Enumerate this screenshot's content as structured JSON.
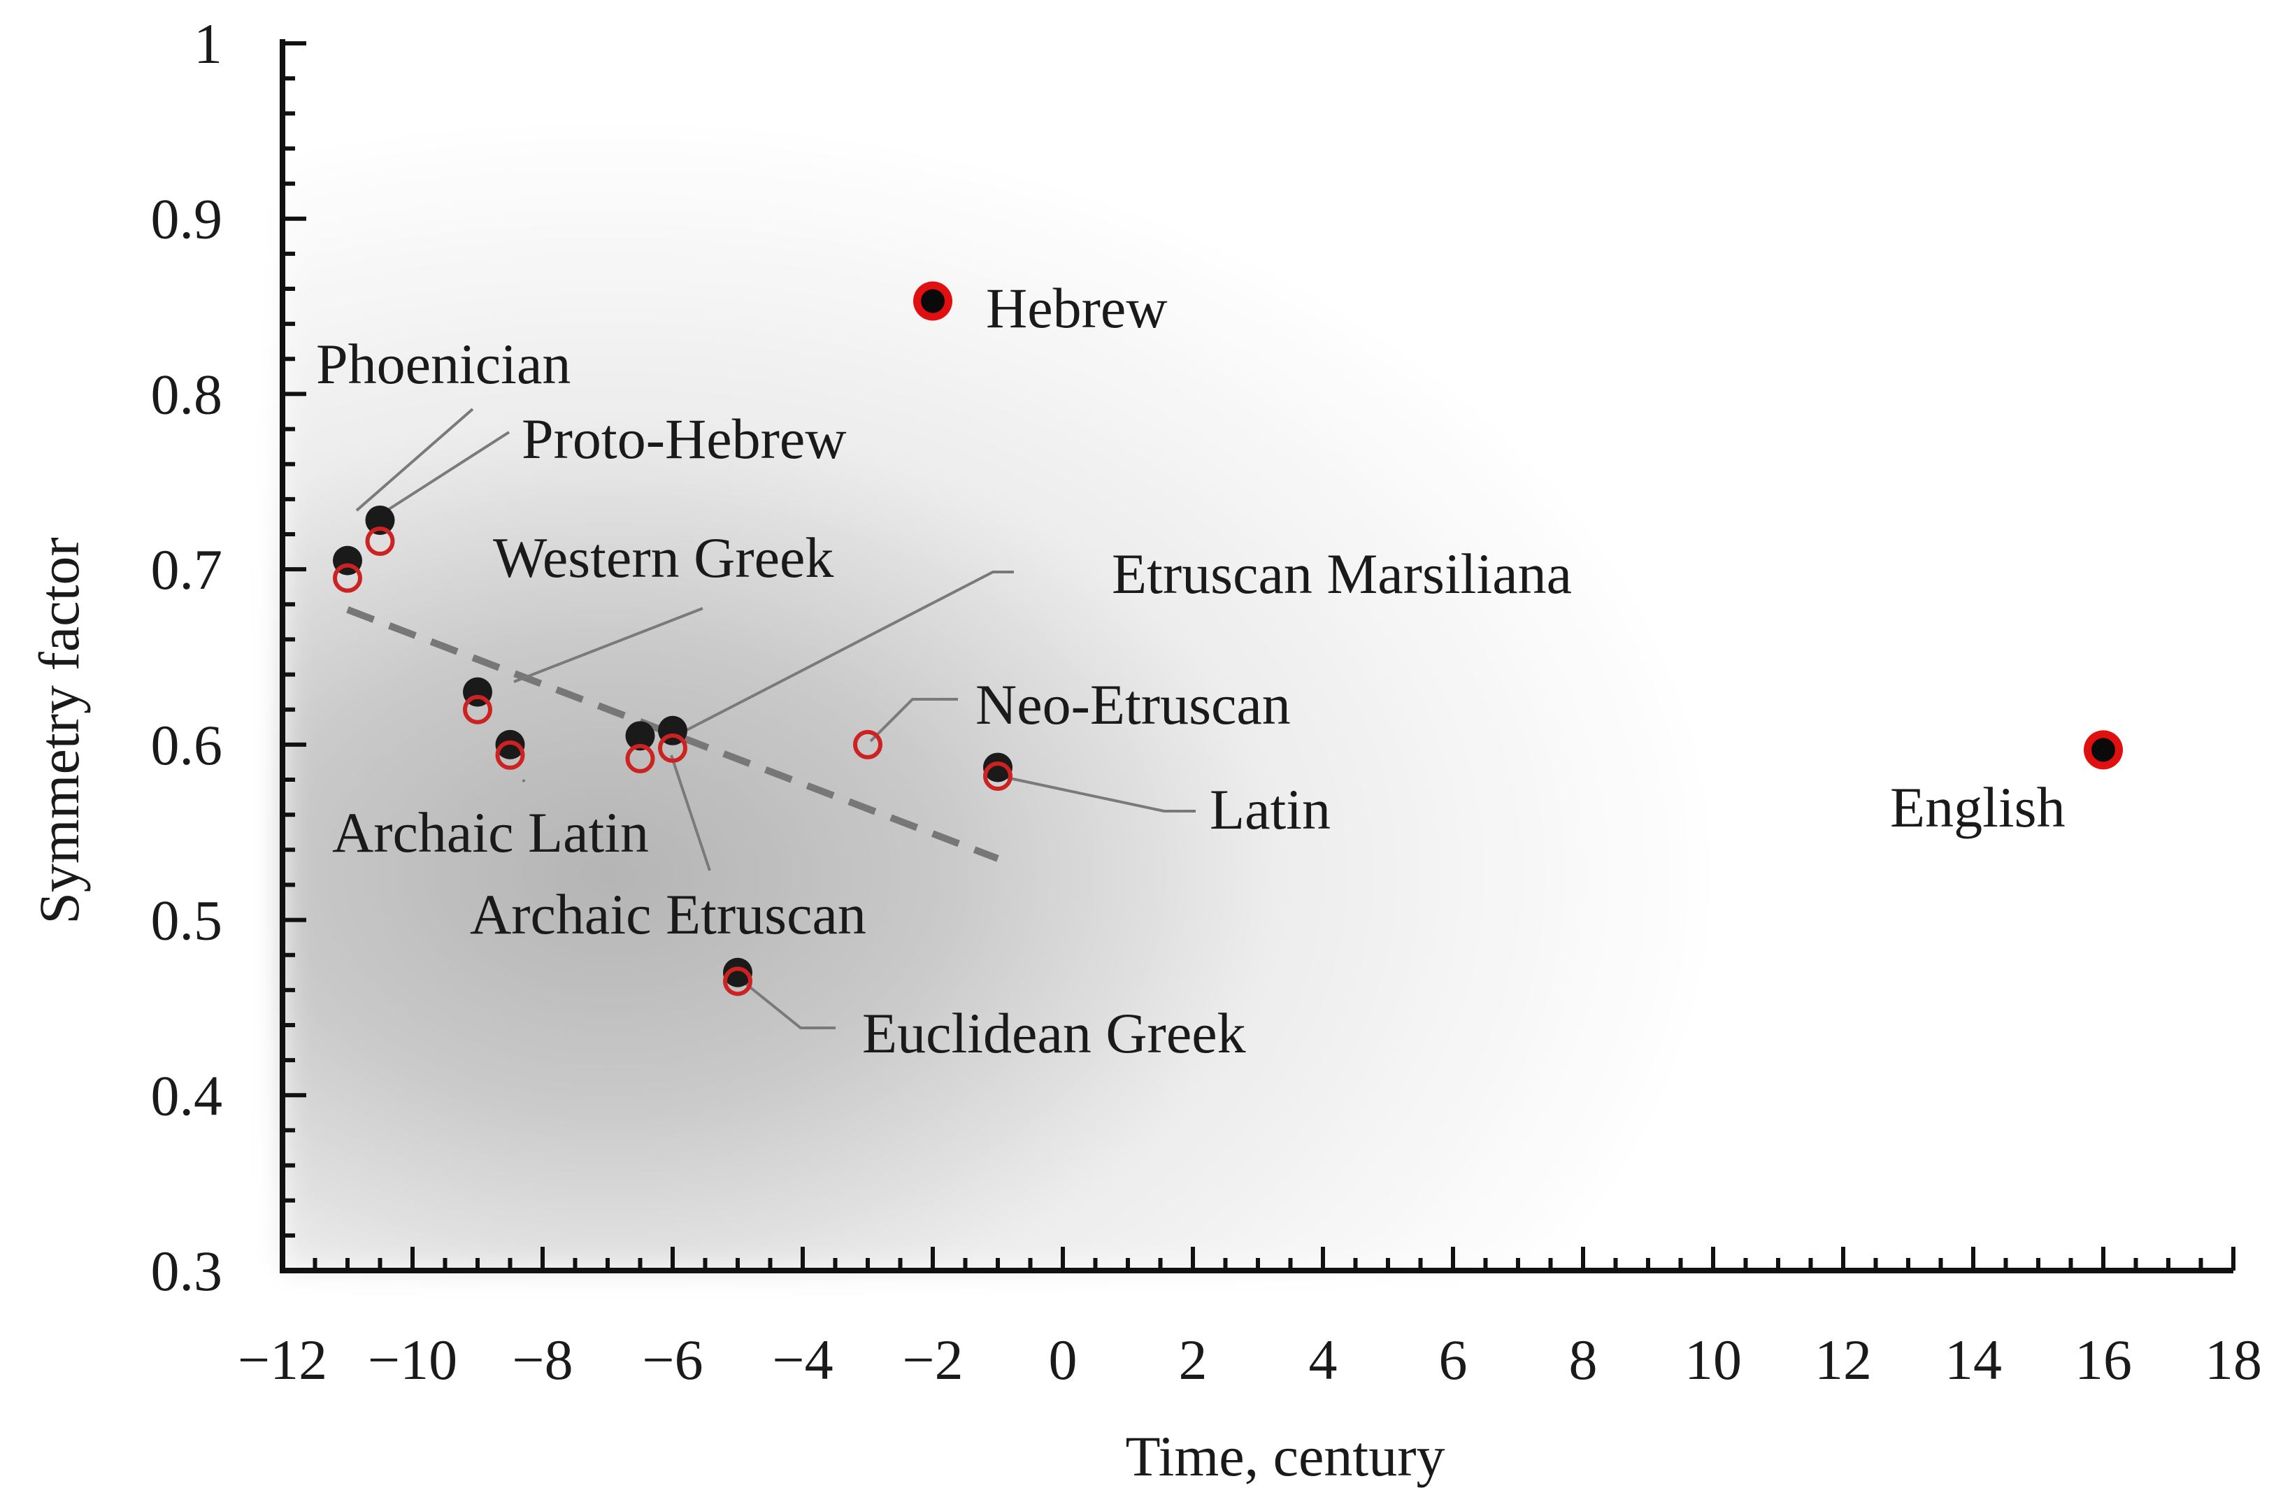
{
  "chart_data": {
    "type": "scatter",
    "xlabel": "Time, century",
    "ylabel": "Symmetry factor",
    "xlim": [
      -12,
      18
    ],
    "ylim": [
      0.3,
      1.0
    ],
    "x_ticks": [
      -12,
      -10,
      -8,
      -6,
      -4,
      -2,
      0,
      2,
      4,
      6,
      8,
      10,
      12,
      14,
      16,
      18
    ],
    "x_tick_labels": [
      "−12",
      "−10",
      "−8",
      "−6",
      "−4",
      "−2",
      "0",
      "2",
      "4",
      "6",
      "8",
      "10",
      "12",
      "14",
      "16",
      "18"
    ],
    "y_ticks": [
      0.3,
      0.4,
      0.5,
      0.6,
      0.7,
      0.8,
      0.9,
      1.0
    ],
    "y_tick_labels": [
      "0.3",
      "0.4",
      "0.5",
      "0.6",
      "0.7",
      "0.8",
      "0.9",
      "1"
    ],
    "grid": false,
    "series": [
      {
        "marker": "filled",
        "color": "#1a1a1a",
        "points": [
          {
            "label": "Phoenician",
            "x": -11.0,
            "y": 0.705
          },
          {
            "label": "Proto-Hebrew",
            "x": -10.5,
            "y": 0.728
          },
          {
            "label": "Western Greek",
            "x": -9.0,
            "y": 0.63
          },
          {
            "label": "Archaic Latin",
            "x": -8.5,
            "y": 0.6
          },
          {
            "label": "Archaic Etruscan",
            "x": -6.5,
            "y": 0.605
          },
          {
            "label": "Etruscan Marsiliana",
            "x": -6.0,
            "y": 0.608
          },
          {
            "label": "Latin",
            "x": -1.0,
            "y": 0.587
          },
          {
            "label": "Euclidean Greek",
            "x": -5.0,
            "y": 0.47
          },
          {
            "label": "Hebrew",
            "x": -2.0,
            "y": 0.853
          },
          {
            "label": "English",
            "x": 16.0,
            "y": 0.597
          }
        ]
      },
      {
        "marker": "open",
        "color": "#cc2222",
        "points": [
          {
            "label": "Phoenician",
            "x": -11.0,
            "y": 0.695
          },
          {
            "label": "Proto-Hebrew",
            "x": -10.5,
            "y": 0.716
          },
          {
            "label": "Western Greek",
            "x": -9.0,
            "y": 0.62
          },
          {
            "label": "Archaic Latin",
            "x": -8.5,
            "y": 0.594
          },
          {
            "label": "Archaic Etruscan",
            "x": -6.5,
            "y": 0.592
          },
          {
            "label": "Etruscan Marsiliana",
            "x": -6.0,
            "y": 0.598
          },
          {
            "label": "Neo-Etruscan",
            "x": -3.0,
            "y": 0.6
          },
          {
            "label": "Latin",
            "x": -1.0,
            "y": 0.582
          },
          {
            "label": "Euclidean Greek",
            "x": -5.0,
            "y": 0.465
          },
          {
            "label": "Hebrew",
            "x": -2.0,
            "y": 0.853
          },
          {
            "label": "English",
            "x": 16.0,
            "y": 0.597
          }
        ]
      }
    ],
    "trend_line": {
      "style": "dashed",
      "color": "#777777",
      "x": [
        -11.0,
        -1.0
      ],
      "y": [
        0.677,
        0.535
      ]
    },
    "annotations": [
      {
        "text": "Phoenician"
      },
      {
        "text": "Proto-Hebrew"
      },
      {
        "text": "Western Greek"
      },
      {
        "text": "Etruscan Marsiliana"
      },
      {
        "text": "Neo-Etruscan"
      },
      {
        "text": "Latin"
      },
      {
        "text": "Archaic Latin"
      },
      {
        "text": "Archaic Etruscan"
      },
      {
        "text": "Euclidean Greek"
      },
      {
        "text": "Hebrew"
      },
      {
        "text": "English"
      }
    ],
    "background": "radial grey shading centered near x=-4, y=0.6"
  }
}
